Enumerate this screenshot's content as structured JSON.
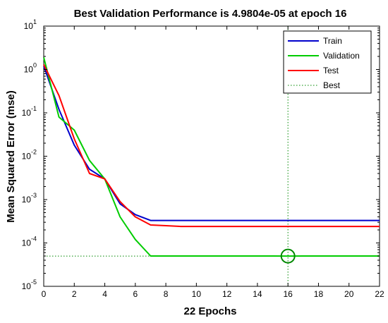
{
  "chart_data": {
    "type": "line",
    "title": "Best Validation Performance is 4.9804e-05 at epoch 16",
    "xlabel": "22 Epochs",
    "ylabel": "Mean Squared Error  (mse)",
    "xlim": [
      0,
      22
    ],
    "ylim": [
      1e-05,
      10
    ],
    "yscale": "log",
    "grid": false,
    "legend_position": "top-right",
    "x_ticks": [
      0,
      2,
      4,
      6,
      8,
      10,
      12,
      14,
      16,
      18,
      20,
      22
    ],
    "y_ticks": [
      {
        "value": 10,
        "base": "10",
        "exp": "1"
      },
      {
        "value": 1,
        "base": "10",
        "exp": "0"
      },
      {
        "value": 0.1,
        "base": "10",
        "exp": "-1"
      },
      {
        "value": 0.01,
        "base": "10",
        "exp": "-2"
      },
      {
        "value": 0.001,
        "base": "10",
        "exp": "-3"
      },
      {
        "value": 0.0001,
        "base": "10",
        "exp": "-4"
      },
      {
        "value": 1e-05,
        "base": "10",
        "exp": "-5"
      }
    ],
    "series": [
      {
        "name": "Train",
        "color": "#0000cc",
        "points": [
          [
            0,
            1.2
          ],
          [
            1,
            0.12
          ],
          [
            2,
            0.018
          ],
          [
            3,
            0.005
          ],
          [
            4,
            0.003
          ],
          [
            5,
            0.0008
          ],
          [
            6,
            0.00045
          ],
          [
            7,
            0.00033
          ],
          [
            8,
            0.00033
          ],
          [
            9,
            0.00033
          ],
          [
            10,
            0.00033
          ],
          [
            11,
            0.00033
          ],
          [
            12,
            0.00033
          ],
          [
            13,
            0.00033
          ],
          [
            14,
            0.00033
          ],
          [
            15,
            0.00033
          ],
          [
            16,
            0.00033
          ],
          [
            17,
            0.00033
          ],
          [
            18,
            0.00033
          ],
          [
            19,
            0.00033
          ],
          [
            20,
            0.00033
          ],
          [
            21,
            0.00033
          ],
          [
            22,
            0.00033
          ]
        ]
      },
      {
        "name": "Validation",
        "color": "#00cc00",
        "points": [
          [
            0,
            1.9
          ],
          [
            1,
            0.08
          ],
          [
            2,
            0.04
          ],
          [
            3,
            0.008
          ],
          [
            4,
            0.003
          ],
          [
            5,
            0.0004
          ],
          [
            6,
            0.00012
          ],
          [
            7,
            5e-05
          ],
          [
            8,
            5e-05
          ],
          [
            9,
            5e-05
          ],
          [
            10,
            5e-05
          ],
          [
            11,
            5e-05
          ],
          [
            12,
            5e-05
          ],
          [
            13,
            5e-05
          ],
          [
            14,
            5e-05
          ],
          [
            15,
            5e-05
          ],
          [
            16,
            4.98e-05
          ],
          [
            17,
            5e-05
          ],
          [
            18,
            5e-05
          ],
          [
            19,
            5e-05
          ],
          [
            20,
            5e-05
          ],
          [
            21,
            5e-05
          ],
          [
            22,
            5e-05
          ]
        ]
      },
      {
        "name": "Test",
        "color": "#ff0000",
        "points": [
          [
            0,
            1.3
          ],
          [
            1,
            0.25
          ],
          [
            2,
            0.025
          ],
          [
            3,
            0.004
          ],
          [
            4,
            0.003
          ],
          [
            5,
            0.0009
          ],
          [
            6,
            0.0004
          ],
          [
            7,
            0.00026
          ],
          [
            8,
            0.00025
          ],
          [
            9,
            0.00024
          ],
          [
            10,
            0.00024
          ],
          [
            11,
            0.00024
          ],
          [
            12,
            0.00024
          ],
          [
            13,
            0.00024
          ],
          [
            14,
            0.00024
          ],
          [
            15,
            0.00024
          ],
          [
            16,
            0.00024
          ],
          [
            17,
            0.00024
          ],
          [
            18,
            0.00024
          ],
          [
            19,
            0.00024
          ],
          [
            20,
            0.00024
          ],
          [
            21,
            0.00024
          ],
          [
            22,
            0.00024
          ]
        ]
      }
    ],
    "best": {
      "name": "Best",
      "epoch": 16,
      "value": 4.9804e-05,
      "color": "#008800"
    }
  }
}
